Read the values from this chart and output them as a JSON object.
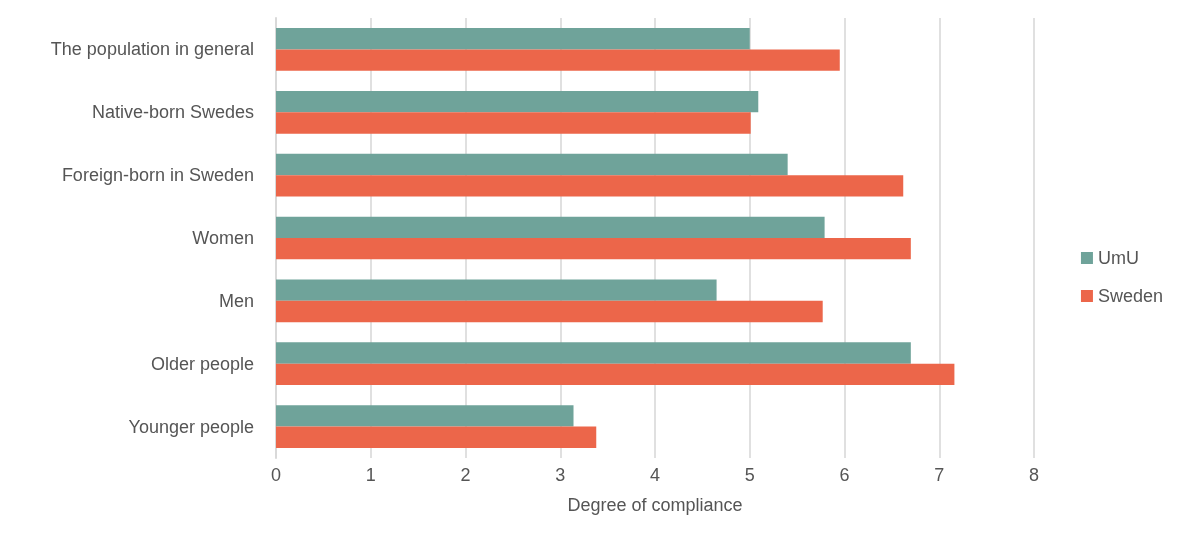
{
  "chart_data": {
    "type": "bar",
    "orientation": "horizontal",
    "xlabel": "Degree of compliance",
    "categories": [
      "The population in general",
      "Native-born Swedes",
      "Foreign-born in Sweden",
      "Women",
      "Men",
      "Older people",
      "Younger people"
    ],
    "series": [
      {
        "name": "UmU",
        "color": "#6fa39a",
        "values": [
          5.0,
          5.09,
          5.4,
          5.79,
          4.65,
          6.7,
          3.14
        ]
      },
      {
        "name": "Sweden",
        "color": "#ec664a",
        "values": [
          5.95,
          5.01,
          6.62,
          6.7,
          5.77,
          7.16,
          3.38
        ]
      }
    ],
    "xlim": [
      0,
      8
    ],
    "xticks": [
      0,
      1,
      2,
      3,
      4,
      5,
      6,
      7,
      8
    ],
    "grid": "x",
    "legend": "right"
  }
}
